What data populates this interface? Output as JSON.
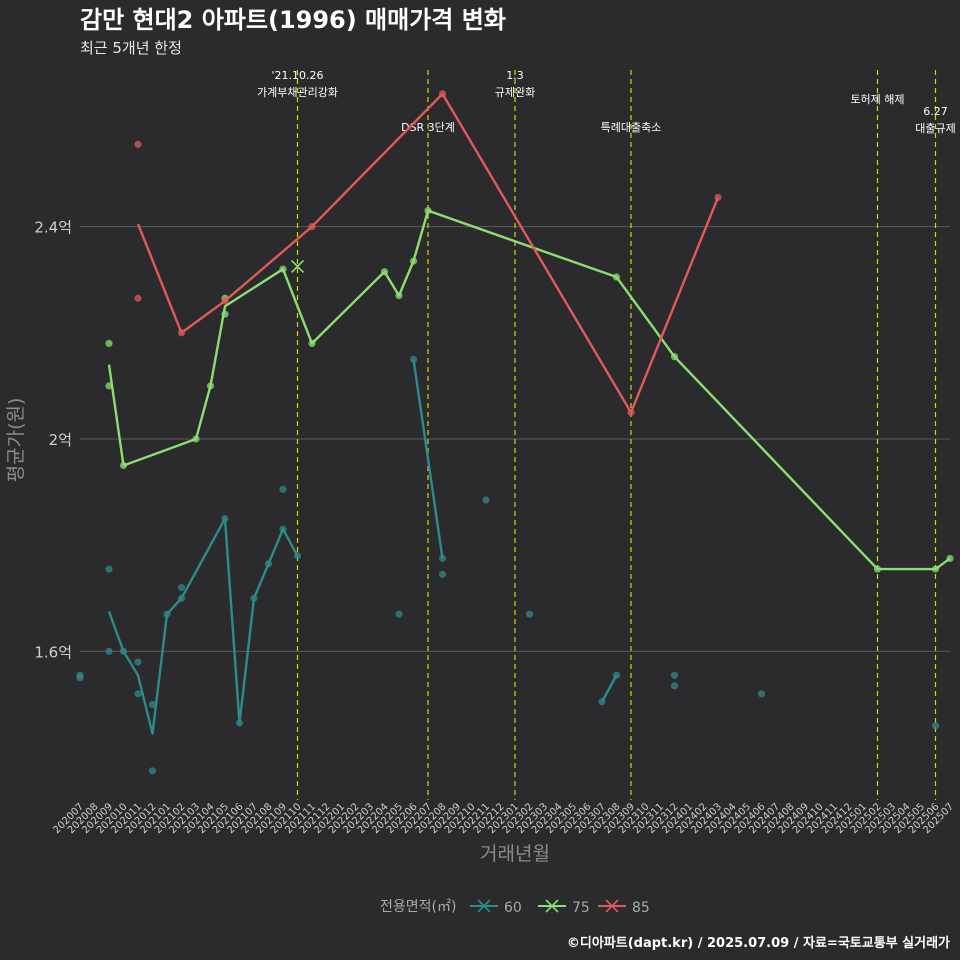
{
  "title": "감만 현대2 아파트(1996) 매매가격 변화",
  "subtitle": "최근 5개년 한정",
  "caption": "©디아파트(dapt.kr) / 2025.07.09 / 자료=국토교통부 실거래가",
  "colors": {
    "60": "#2e8b8b",
    "75": "#8bde72",
    "85": "#e05a5a",
    "event": "#d8d800",
    "grid": "#5a5a5a",
    "background": "#2b2a2c"
  },
  "chart_data": {
    "type": "line",
    "xlabel": "거래년월",
    "ylabel": "평균가(원)",
    "ylim": [
      1.32,
      2.71
    ],
    "yticks": [
      {
        "value": 1.6,
        "label": "1.6억"
      },
      {
        "value": 2.0,
        "label": "2억"
      },
      {
        "value": 2.4,
        "label": "2.4억"
      }
    ],
    "categories": [
      "202007",
      "202008",
      "202009",
      "202010",
      "202011",
      "202012",
      "202101",
      "202102",
      "202103",
      "202104",
      "202105",
      "202106",
      "202107",
      "202108",
      "202109",
      "202110",
      "202111",
      "202112",
      "202201",
      "202202",
      "202203",
      "202204",
      "202205",
      "202206",
      "202207",
      "202208",
      "202209",
      "202210",
      "202211",
      "202212",
      "202301",
      "202302",
      "202303",
      "202304",
      "202305",
      "202306",
      "202307",
      "202308",
      "202309",
      "202310",
      "202311",
      "202312",
      "202401",
      "202402",
      "202403",
      "202404",
      "202405",
      "202406",
      "202407",
      "202408",
      "202409",
      "202410",
      "202411",
      "202412",
      "202501",
      "202502",
      "202503",
      "202504",
      "202505",
      "202506",
      "202507"
    ],
    "legend": {
      "title": "전용면적(㎡)",
      "position": "bottom"
    },
    "series": [
      {
        "name": "60",
        "line": [
          [
            "202009",
            1.675
          ],
          [
            "202010",
            1.6
          ],
          [
            "202011",
            1.555
          ],
          [
            "202012",
            1.445
          ],
          [
            "202101",
            1.67
          ],
          [
            "202102",
            1.7
          ],
          [
            "202105",
            1.85
          ],
          [
            "202106",
            1.465
          ],
          [
            "202107",
            1.7
          ],
          [
            "202108",
            1.765
          ],
          [
            "202109",
            1.83
          ],
          [
            "202110",
            1.78
          ]
        ],
        "line2": [
          [
            "202206",
            2.15
          ],
          [
            "202208",
            1.775
          ]
        ],
        "line3": [
          [
            "202307",
            1.505
          ],
          [
            "202308",
            1.555
          ]
        ],
        "points": [
          [
            "202007",
            1.555
          ],
          [
            "202007",
            1.55
          ],
          [
            "202009",
            1.755
          ],
          [
            "202009",
            1.6
          ],
          [
            "202010",
            1.6
          ],
          [
            "202011",
            1.58
          ],
          [
            "202011",
            1.52
          ],
          [
            "202012",
            1.5
          ],
          [
            "202012",
            1.375
          ],
          [
            "202101",
            1.67
          ],
          [
            "202102",
            1.72
          ],
          [
            "202102",
            1.7
          ],
          [
            "202105",
            1.85
          ],
          [
            "202106",
            1.465
          ],
          [
            "202107",
            1.7
          ],
          [
            "202108",
            1.765
          ],
          [
            "202109",
            1.905
          ],
          [
            "202109",
            1.83
          ],
          [
            "202110",
            1.78
          ],
          [
            "202205",
            1.67
          ],
          [
            "202206",
            2.15
          ],
          [
            "202208",
            1.775
          ],
          [
            "202208",
            1.745
          ],
          [
            "202211",
            1.885
          ],
          [
            "202302",
            1.67
          ],
          [
            "202307",
            1.505
          ],
          [
            "202308",
            1.555
          ],
          [
            "202312",
            1.555
          ],
          [
            "202312",
            1.535
          ],
          [
            "202406",
            1.52
          ],
          [
            "202506",
            1.46
          ]
        ]
      },
      {
        "name": "75",
        "line": [
          [
            "202009",
            2.14
          ],
          [
            "202010",
            1.95
          ],
          [
            "202103",
            2.0
          ],
          [
            "202104",
            2.1
          ],
          [
            "202105",
            2.25
          ],
          [
            "202109",
            2.32
          ],
          [
            "202111",
            2.18
          ],
          [
            "202204",
            2.315
          ],
          [
            "202205",
            2.27
          ],
          [
            "202206",
            2.335
          ],
          [
            "202207",
            2.43
          ],
          [
            "202308",
            2.305
          ],
          [
            "202312",
            2.155
          ],
          [
            "202502",
            1.755
          ],
          [
            "202506",
            1.755
          ],
          [
            "202507",
            1.775
          ]
        ],
        "points": [
          [
            "202009",
            2.18
          ],
          [
            "202009",
            2.1
          ],
          [
            "202010",
            1.95
          ],
          [
            "202103",
            2.0
          ],
          [
            "202104",
            2.1
          ],
          [
            "202105",
            2.265
          ],
          [
            "202105",
            2.235
          ],
          [
            "202109",
            2.32
          ],
          [
            "202111",
            2.18
          ],
          [
            "202204",
            2.315
          ],
          [
            "202205",
            2.27
          ],
          [
            "202206",
            2.335
          ],
          [
            "202207",
            2.43
          ],
          [
            "202308",
            2.305
          ],
          [
            "202312",
            2.155
          ],
          [
            "202502",
            1.755
          ],
          [
            "202506",
            1.755
          ],
          [
            "202507",
            1.775
          ]
        ]
      },
      {
        "name": "85",
        "line": [
          [
            "202011",
            2.405
          ],
          [
            "202102",
            2.2
          ],
          [
            "202105",
            2.26
          ],
          [
            "202111",
            2.4
          ],
          [
            "202208",
            2.65
          ],
          [
            "202309",
            2.05
          ],
          [
            "202403",
            2.455
          ]
        ],
        "points": [
          [
            "202011",
            2.555
          ],
          [
            "202011",
            2.265
          ],
          [
            "202102",
            2.2
          ],
          [
            "202105",
            2.26
          ],
          [
            "202111",
            2.4
          ],
          [
            "202208",
            2.65
          ],
          [
            "202309",
            2.05
          ],
          [
            "202403",
            2.455
          ]
        ]
      }
    ],
    "cross_marker": {
      "series": "75",
      "x": "202110",
      "y": 2.325
    },
    "events": [
      {
        "x": "202110",
        "lines": [
          "'21.10.26",
          "가계부채관리강화"
        ],
        "level": 1
      },
      {
        "x": "202207",
        "lines": [
          "DSR 3단계"
        ],
        "level": 3
      },
      {
        "x": "202301",
        "lines": [
          "1.3",
          "규제완화"
        ],
        "level": 1
      },
      {
        "x": "202309",
        "lines": [
          "특례대출축소"
        ],
        "level": 3
      },
      {
        "x": "202502",
        "lines": [
          "토허제 해제"
        ],
        "level": 2
      },
      {
        "x": "202506",
        "lines": [
          "6.27",
          "대출규제"
        ],
        "level": 3
      }
    ]
  }
}
